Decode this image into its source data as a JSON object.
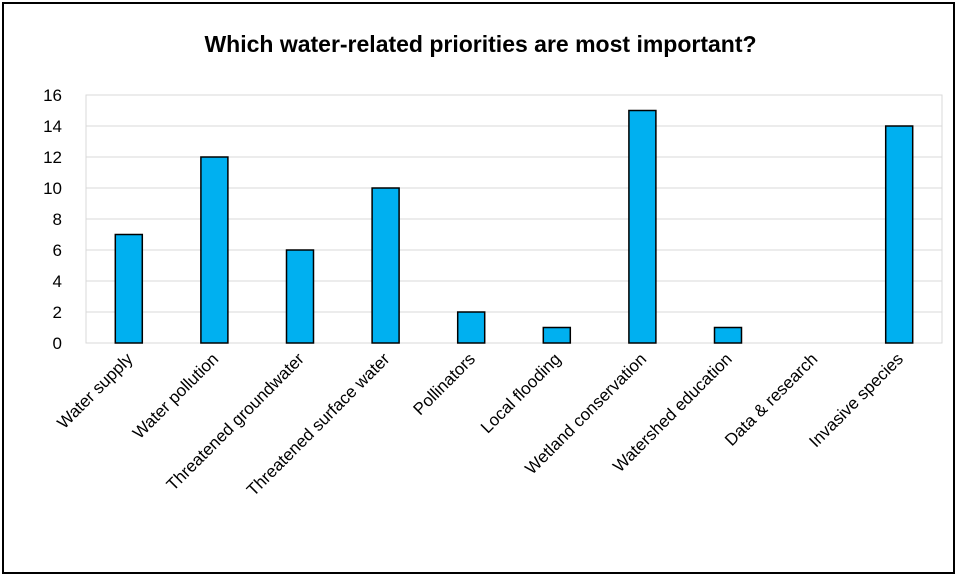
{
  "chart_data": {
    "type": "bar",
    "title": "Which water-related priorities are most important?",
    "categories": [
      "Water supply",
      "Water pollution",
      "Threatened groundwater",
      "Threatened surface water",
      "Pollinators",
      "Local flooding",
      "Wetland conservation",
      "Watershed education",
      "Data & research",
      "Invasive species"
    ],
    "values": [
      7,
      12,
      6,
      10,
      2,
      1,
      15,
      1,
      0,
      14
    ],
    "ylim": [
      0,
      16
    ],
    "yticks": [
      "0",
      "2",
      "4",
      "6",
      "8",
      "10",
      "12",
      "14",
      "16"
    ],
    "grid": true,
    "legend": "none",
    "colors": {
      "bar": "#00b0f0",
      "bar_stroke": "#000000",
      "grid": "#d9d9d9"
    }
  }
}
